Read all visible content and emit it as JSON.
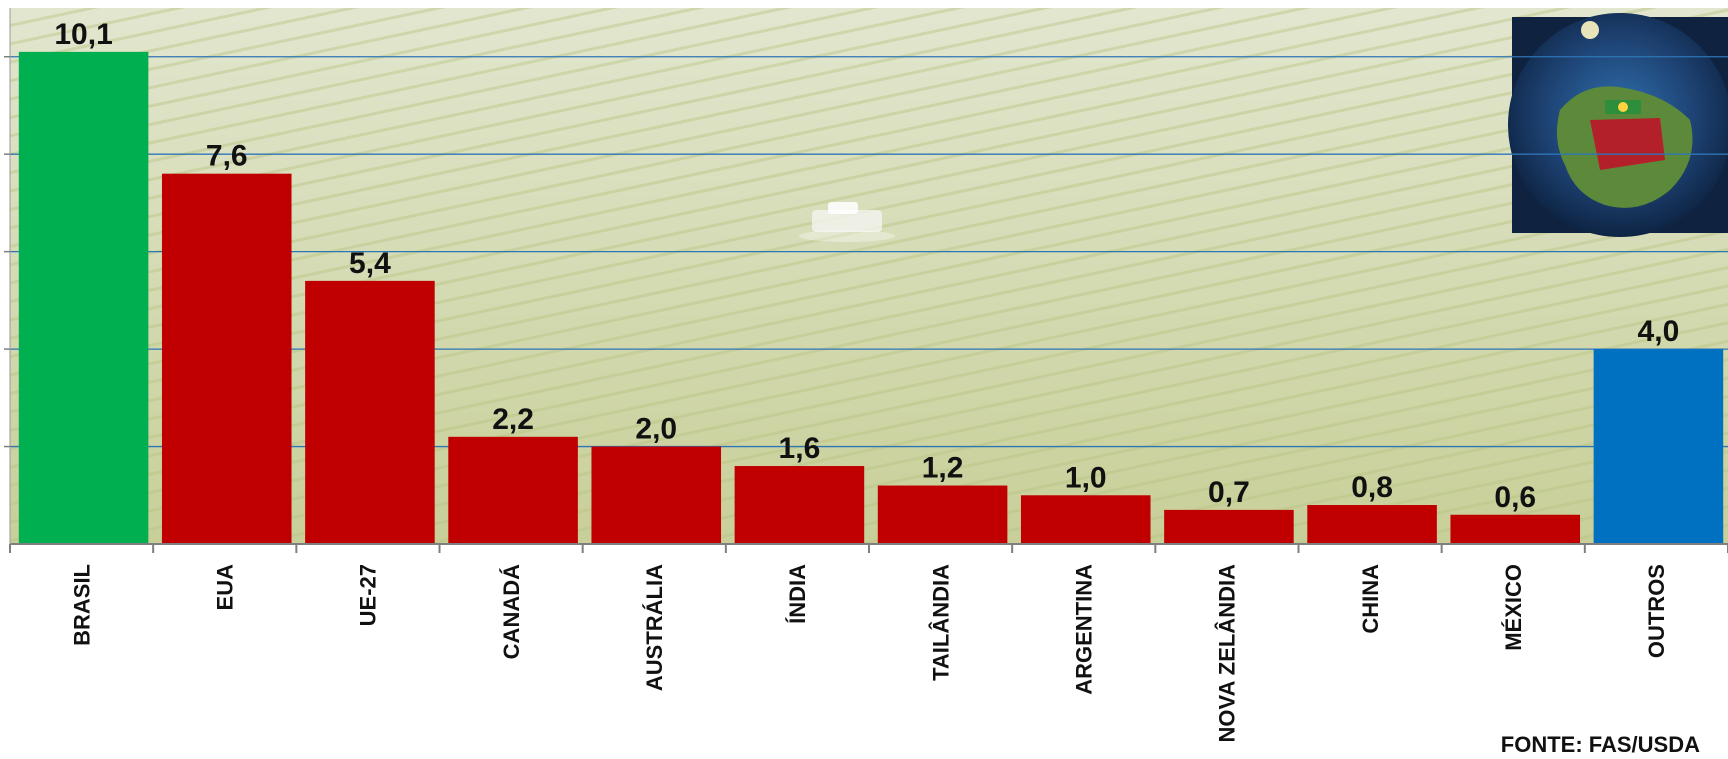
{
  "chart_data": {
    "type": "bar",
    "categories": [
      "BRASIL",
      "EUA",
      "UE-27",
      "CANADÁ",
      "AUSTRÁLIA",
      "ÍNDIA",
      "TAILÂNDIA",
      "ARGENTINA",
      "NOVA ZELÂNDIA",
      "CHINA",
      "MÉXICO",
      "OUTROS"
    ],
    "values": [
      10.1,
      7.6,
      5.4,
      2.2,
      2.0,
      1.6,
      1.2,
      1.0,
      0.7,
      0.8,
      0.6,
      4.0
    ],
    "value_labels": [
      "10,1",
      "7,6",
      "5,4",
      "2,2",
      "2,0",
      "1,6",
      "1,2",
      "1,0",
      "0,7",
      "0,8",
      "0,6",
      "4,0"
    ],
    "bar_colors": [
      "#00b050",
      "#c00000",
      "#c00000",
      "#c00000",
      "#c00000",
      "#c00000",
      "#c00000",
      "#c00000",
      "#c00000",
      "#c00000",
      "#c00000",
      "#0070c0"
    ],
    "ylim": [
      0,
      11
    ],
    "gridlines": [
      2,
      4,
      6,
      8,
      10
    ],
    "grid": true,
    "gridline_color": "#2e75b6",
    "source": "FONTE: FAS/USDA"
  },
  "decor": {
    "background": "aerial-crop-field-photo",
    "inset": "globe-trade-illustration"
  }
}
